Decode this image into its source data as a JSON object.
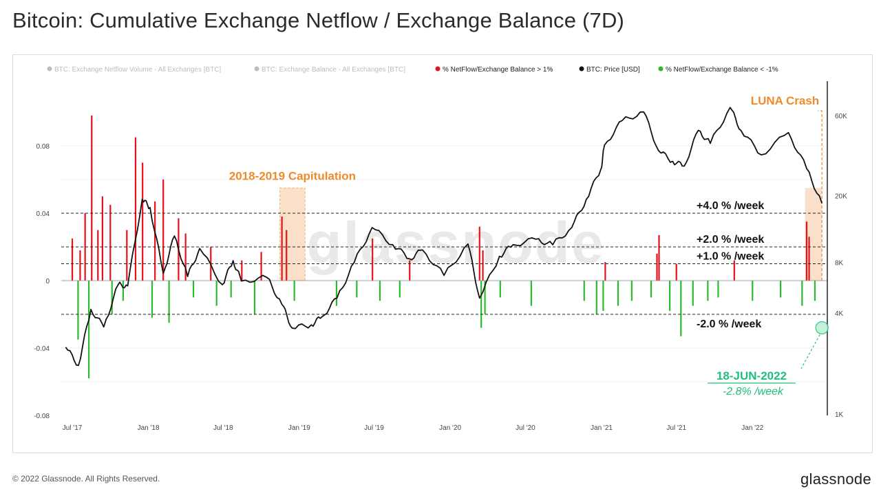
{
  "title": "Bitcoin: Cumulative Exchange Netflow / Exchange Balance (7D)",
  "footer": {
    "copyright": "© 2022 Glassnode. All Rights Reserved.",
    "brand": "glassnode"
  },
  "watermark": "glassnode",
  "colors": {
    "red": "#e8101a",
    "green": "#2db92d",
    "price": "#111111",
    "orange": "#ef8a2a",
    "orange_fill": "#f8d3b3",
    "teal": "#1fbf7a",
    "legend_faded": "#bdbdbd"
  },
  "chart_data": {
    "type": "bar",
    "legend": [
      {
        "label": "BTC: Exchange Netflow Volume - All Exchanges [BTC]",
        "color": "#111111",
        "faded": true
      },
      {
        "label": "BTC: Exchange Balance - All Exchanges [BTC]",
        "color": "#111111",
        "faded": true
      },
      {
        "label": "% NetFlow/Exchange Balance > 1%",
        "color": "#e8101a",
        "faded": false
      },
      {
        "label": "BTC: Price [USD]",
        "color": "#111111",
        "faded": false
      },
      {
        "label": "% NetFlow/Exchange Balance < -1%",
        "color": "#2db92d",
        "faded": false
      }
    ],
    "x_ticks": [
      "Jul '17",
      "Jan '18",
      "Jul '18",
      "Jan '19",
      "Jul '19",
      "Jan '20",
      "Jul '20",
      "Jan '21",
      "Jul '21",
      "Jan '22"
    ],
    "y_left": {
      "ticks": [
        "0.08",
        "0.04",
        "0",
        "-0.04",
        "-0.08"
      ],
      "range": [
        -0.08,
        0.08
      ]
    },
    "y_right": {
      "ticks": [
        "60K",
        "20K",
        "8K",
        "4K",
        "1K"
      ],
      "scale": "log"
    },
    "price_series": [
      [
        "2017-06-15",
        2500
      ],
      [
        "2017-07-16",
        1950
      ],
      [
        "2017-08-15",
        4200
      ],
      [
        "2017-09-15",
        3300
      ],
      [
        "2017-10-20",
        5900
      ],
      [
        "2017-11-12",
        5800
      ],
      [
        "2017-12-17",
        19000
      ],
      [
        "2018-01-05",
        17000
      ],
      [
        "2018-02-06",
        6900
      ],
      [
        "2018-03-05",
        11500
      ],
      [
        "2018-04-06",
        6600
      ],
      [
        "2018-05-05",
        9700
      ],
      [
        "2018-06-29",
        5900
      ],
      [
        "2018-07-25",
        8200
      ],
      [
        "2018-08-14",
        6200
      ],
      [
        "2018-10-15",
        6500
      ],
      [
        "2018-11-20",
        4500
      ],
      [
        "2018-12-15",
        3250
      ],
      [
        "2019-01-30",
        3400
      ],
      [
        "2019-02-25",
        3800
      ],
      [
        "2019-04-02",
        4900
      ],
      [
        "2019-05-14",
        8000
      ],
      [
        "2019-06-26",
        12900
      ],
      [
        "2019-08-15",
        10200
      ],
      [
        "2019-09-25",
        8400
      ],
      [
        "2019-10-26",
        9500
      ],
      [
        "2019-12-17",
        6700
      ],
      [
        "2020-02-13",
        10300
      ],
      [
        "2020-03-12",
        4900
      ],
      [
        "2020-04-29",
        8700
      ],
      [
        "2020-06-01",
        10200
      ],
      [
        "2020-07-26",
        11000
      ],
      [
        "2020-09-05",
        10200
      ],
      [
        "2020-10-21",
        12900
      ],
      [
        "2020-11-25",
        19000
      ],
      [
        "2020-12-31",
        29000
      ],
      [
        "2021-01-08",
        40000
      ],
      [
        "2021-02-20",
        56000
      ],
      [
        "2021-04-13",
        63000
      ],
      [
        "2021-05-19",
        37000
      ],
      [
        "2021-06-22",
        32000
      ],
      [
        "2021-07-20",
        30000
      ],
      [
        "2021-08-23",
        49000
      ],
      [
        "2021-09-21",
        41000
      ],
      [
        "2021-11-08",
        67000
      ],
      [
        "2021-12-04",
        49000
      ],
      [
        "2022-01-22",
        35000
      ],
      [
        "2022-03-29",
        47500
      ],
      [
        "2022-05-12",
        29000
      ],
      [
        "2022-06-18",
        18000
      ]
    ],
    "red_spikes": [
      [
        "2017-07-01",
        0.025
      ],
      [
        "2017-07-20",
        0.018
      ],
      [
        "2017-08-01",
        0.04
      ],
      [
        "2017-08-17",
        0.098
      ],
      [
        "2017-09-01",
        0.03
      ],
      [
        "2017-09-12",
        0.05
      ],
      [
        "2017-10-01",
        0.045
      ],
      [
        "2017-11-10",
        0.03
      ],
      [
        "2017-12-01",
        0.085
      ],
      [
        "2017-12-18",
        0.07
      ],
      [
        "2018-01-17",
        0.047
      ],
      [
        "2018-02-06",
        0.06
      ],
      [
        "2018-03-15",
        0.037
      ],
      [
        "2018-04-01",
        0.028
      ],
      [
        "2018-06-01",
        0.02
      ],
      [
        "2018-08-15",
        0.012
      ],
      [
        "2018-10-01",
        0.017
      ],
      [
        "2018-11-20",
        0.038
      ],
      [
        "2018-12-01",
        0.03
      ],
      [
        "2019-06-27",
        0.025
      ],
      [
        "2019-09-25",
        0.012
      ],
      [
        "2020-03-12",
        0.032
      ],
      [
        "2020-03-20",
        0.018
      ],
      [
        "2021-01-10",
        0.011
      ],
      [
        "2021-05-15",
        0.016
      ],
      [
        "2021-05-20",
        0.027
      ],
      [
        "2021-07-01",
        0.01
      ],
      [
        "2021-11-18",
        0.012
      ],
      [
        "2022-05-12",
        0.035
      ],
      [
        "2022-05-18",
        0.026
      ]
    ],
    "green_spikes": [
      [
        "2017-07-15",
        -0.035
      ],
      [
        "2017-08-10",
        -0.058
      ],
      [
        "2017-10-05",
        -0.02
      ],
      [
        "2017-11-01",
        -0.012
      ],
      [
        "2018-01-10",
        -0.022
      ],
      [
        "2018-02-20",
        -0.025
      ],
      [
        "2018-04-20",
        -0.01
      ],
      [
        "2018-06-15",
        -0.015
      ],
      [
        "2018-07-20",
        -0.01
      ],
      [
        "2018-09-15",
        -0.02
      ],
      [
        "2018-12-20",
        -0.012
      ],
      [
        "2019-04-01",
        -0.015
      ],
      [
        "2019-05-20",
        -0.01
      ],
      [
        "2019-07-15",
        -0.012
      ],
      [
        "2019-09-01",
        -0.01
      ],
      [
        "2020-03-16",
        -0.028
      ],
      [
        "2020-03-25",
        -0.02
      ],
      [
        "2020-05-01",
        -0.01
      ],
      [
        "2020-07-15",
        -0.015
      ],
      [
        "2020-11-20",
        -0.012
      ],
      [
        "2020-12-20",
        -0.02
      ],
      [
        "2021-01-05",
        -0.018
      ],
      [
        "2021-02-10",
        -0.015
      ],
      [
        "2021-03-15",
        -0.012
      ],
      [
        "2021-05-01",
        -0.01
      ],
      [
        "2021-06-15",
        -0.018
      ],
      [
        "2021-07-12",
        -0.033
      ],
      [
        "2021-08-10",
        -0.015
      ],
      [
        "2021-09-15",
        -0.012
      ],
      [
        "2021-10-10",
        -0.01
      ],
      [
        "2022-01-01",
        -0.012
      ],
      [
        "2022-03-10",
        -0.01
      ],
      [
        "2022-05-01",
        -0.015
      ],
      [
        "2022-06-01",
        -0.012
      ]
    ],
    "reference_lines": [
      {
        "label": "+4.0 % /week",
        "value": 0.04
      },
      {
        "label": "+2.0 % /week",
        "value": 0.02
      },
      {
        "label": "+1.0 % /week",
        "value": 0.01
      },
      {
        "label": "-2.0 % /week",
        "value": -0.02
      }
    ],
    "highlight_regions": [
      {
        "label": "2018-2019 Capitulation",
        "start": "2018-11-15",
        "end": "2019-01-15"
      },
      {
        "label": "LUNA Crash",
        "start": "2022-05-08",
        "end": "2022-06-18"
      }
    ],
    "annotation": {
      "date_label": "18-JUN-2022",
      "value_label": "-2.8% /week"
    }
  }
}
